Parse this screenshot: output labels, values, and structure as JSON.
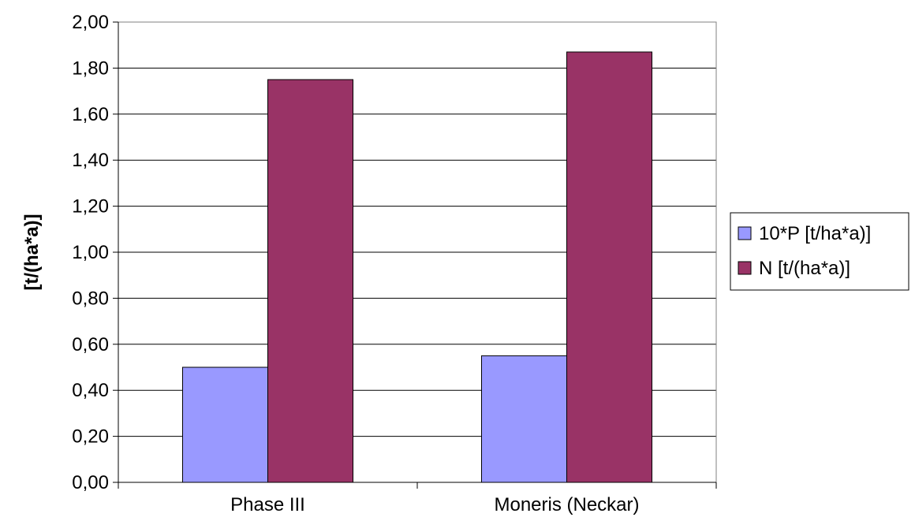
{
  "chart_data": {
    "type": "bar",
    "title": "",
    "xlabel": "",
    "ylabel": "[t/(ha*a)]",
    "categories": [
      "Phase III",
      "Moneris (Neckar)"
    ],
    "series": [
      {
        "name": "10*P [t/ha*a)]",
        "values": [
          0.5,
          0.55
        ],
        "color": "#9999ff"
      },
      {
        "name": "N [t/(ha*a)]",
        "values": [
          1.75,
          1.87
        ],
        "color": "#993366"
      }
    ],
    "ylim": [
      0,
      2.0
    ],
    "y_ticks": [
      "0,00",
      "0,20",
      "0,40",
      "0,60",
      "0,80",
      "1,00",
      "1,20",
      "1,40",
      "1,60",
      "1,80",
      "2,00"
    ],
    "grid": true,
    "legend_position": "right"
  }
}
